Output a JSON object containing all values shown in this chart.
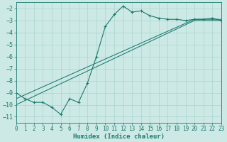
{
  "x": [
    0,
    1,
    2,
    3,
    4,
    5,
    6,
    7,
    8,
    9,
    10,
    11,
    12,
    13,
    14,
    15,
    16,
    17,
    18,
    19,
    20,
    21,
    22,
    23
  ],
  "y_main": [
    -9.0,
    -9.5,
    -9.8,
    -9.8,
    -10.2,
    -10.8,
    -9.5,
    -9.8,
    -8.2,
    -6.0,
    -3.5,
    -2.5,
    -1.8,
    -2.3,
    -2.2,
    -2.6,
    -2.8,
    -2.9,
    -2.9,
    -3.0,
    -2.9,
    -2.9,
    -2.8,
    -3.0
  ],
  "y_line1": [
    -9.5,
    -9.17,
    -8.84,
    -8.51,
    -8.18,
    -7.85,
    -7.52,
    -7.19,
    -6.86,
    -6.53,
    -6.2,
    -5.87,
    -5.54,
    -5.21,
    -4.88,
    -4.55,
    -4.22,
    -3.89,
    -3.56,
    -3.23,
    -2.9,
    -2.9,
    -2.9,
    -2.9
  ],
  "y_line2": [
    -10.0,
    -9.65,
    -9.3,
    -8.95,
    -8.6,
    -8.25,
    -7.9,
    -7.55,
    -7.2,
    -6.85,
    -6.5,
    -6.15,
    -5.8,
    -5.45,
    -5.1,
    -4.75,
    -4.4,
    -4.05,
    -3.7,
    -3.35,
    -3.0,
    -3.0,
    -3.0,
    -3.0
  ],
  "color": "#1a7a6e",
  "bg_color": "#cce9e5",
  "grid_color": "#aad4cf",
  "xlabel": "Humidex (Indice chaleur)",
  "ylim": [
    -11.5,
    -1.5
  ],
  "xlim": [
    0,
    23
  ],
  "yticks": [
    -11,
    -10,
    -9,
    -8,
    -7,
    -6,
    -5,
    -4,
    -3,
    -2
  ],
  "xticks": [
    0,
    1,
    2,
    3,
    4,
    5,
    6,
    7,
    8,
    9,
    10,
    11,
    12,
    13,
    14,
    15,
    16,
    17,
    18,
    19,
    20,
    21,
    22,
    23
  ],
  "xlabel_fontsize": 6.5,
  "tick_fontsize": 5.5
}
